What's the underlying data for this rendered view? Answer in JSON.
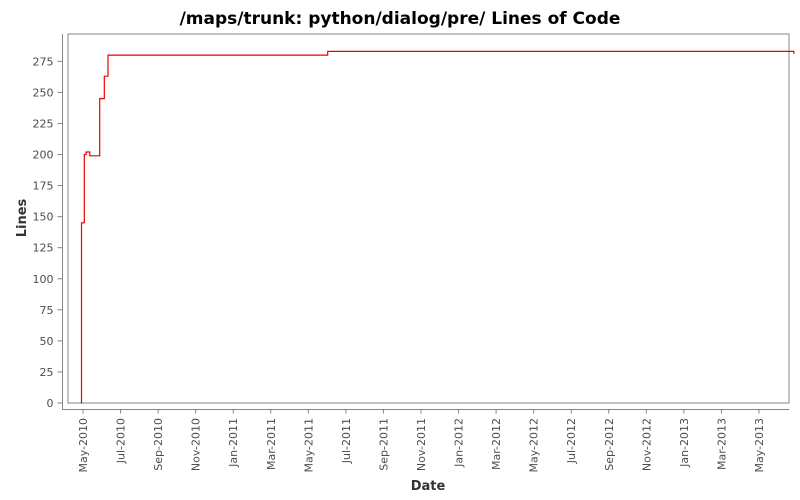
{
  "chart_data": {
    "type": "line",
    "step": "after",
    "title": "/maps/trunk: python/dialog/pre/ Lines of Code",
    "xlabel": "Date",
    "ylabel": "Lines",
    "legend": false,
    "grid": false,
    "line_color": "#ee0000",
    "axis_color": "#848484",
    "tick_label_color": "#4d4d4d",
    "background_color": "#ffffff",
    "x_tick_labels": [
      "May-2010",
      "Jul-2010",
      "Sep-2010",
      "Nov-2010",
      "Jan-2011",
      "Mar-2011",
      "May-2011",
      "Jul-2011",
      "Sep-2011",
      "Nov-2011",
      "Jan-2012",
      "Mar-2012",
      "May-2012",
      "Jul-2012",
      "Sep-2012",
      "Nov-2012",
      "Jan-2013",
      "Mar-2013",
      "May-2013"
    ],
    "x_tick_interval_months": 2,
    "y_ticks": [
      0,
      25,
      50,
      75,
      100,
      125,
      150,
      175,
      200,
      225,
      250,
      275
    ],
    "ylim": [
      0,
      297
    ],
    "xlim_months_from_first_tick": [
      -0.8,
      37.6
    ],
    "series": [
      {
        "name": "Lines of Code",
        "points": [
          {
            "date": "2010-04-28",
            "value": 0
          },
          {
            "date": "2010-04-29",
            "value": 145
          },
          {
            "date": "2010-05-03",
            "value": 200
          },
          {
            "date": "2010-05-06",
            "value": 202
          },
          {
            "date": "2010-05-12",
            "value": 199
          },
          {
            "date": "2010-05-28",
            "value": 245
          },
          {
            "date": "2010-06-05",
            "value": 263
          },
          {
            "date": "2010-06-11",
            "value": 280
          },
          {
            "date": "2011-06-02",
            "value": 283
          },
          {
            "date": "2013-06-27",
            "value": 281
          }
        ]
      }
    ]
  }
}
